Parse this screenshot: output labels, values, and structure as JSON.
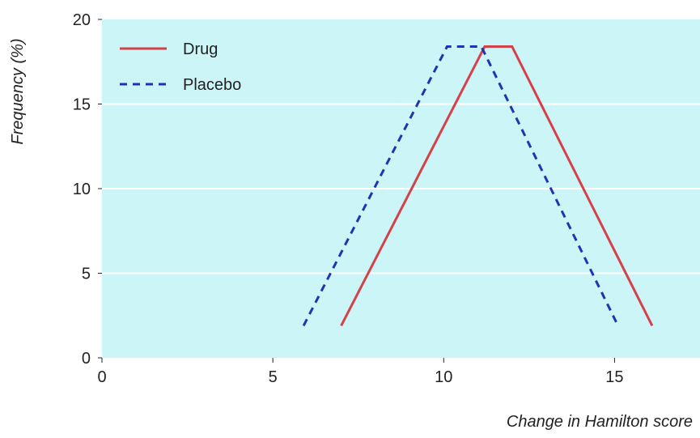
{
  "chart_data": {
    "type": "line",
    "title": "",
    "xlabel": "Change in Hamilton score",
    "ylabel": "Frequency (%)",
    "xlim": [
      0,
      17.5
    ],
    "ylim": [
      0,
      20
    ],
    "xticks": [
      0,
      5,
      10,
      15
    ],
    "yticks": [
      0,
      5,
      10,
      15,
      20
    ],
    "grid": "horizontal",
    "legend": "top-left",
    "colors": {
      "background": "#ccf5f7",
      "grid": "#ffffff"
    },
    "series": [
      {
        "name": "Drug",
        "color": "#d4414a",
        "dash": "solid",
        "points": [
          [
            7,
            1.9
          ],
          [
            11.2,
            18.4
          ],
          [
            12.0,
            18.4
          ],
          [
            16.1,
            1.9
          ]
        ]
      },
      {
        "name": "Placebo",
        "color": "#2033b5",
        "dash": "dashed",
        "points": [
          [
            5.9,
            1.9
          ],
          [
            10.1,
            18.4
          ],
          [
            11.1,
            18.4
          ],
          [
            15.1,
            1.9
          ]
        ]
      }
    ]
  }
}
